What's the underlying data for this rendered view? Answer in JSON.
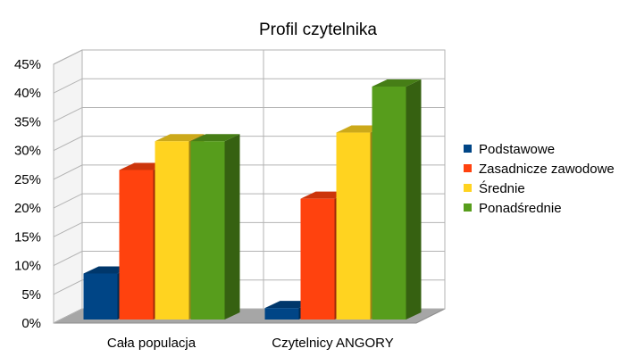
{
  "chart_data": {
    "type": "bar",
    "title": "Profil czytelnika",
    "categories": [
      "Cała populacja",
      "Czytelnicy ANGORY"
    ],
    "series": [
      {
        "name": "Podstawowe",
        "color": "#004586",
        "values": [
          8,
          2
        ]
      },
      {
        "name": "Zasadnicze zawodowe",
        "color": "#ff420e",
        "values": [
          26,
          21
        ]
      },
      {
        "name": "Średnie",
        "color": "#ffd320",
        "values": [
          31,
          32.5
        ]
      },
      {
        "name": "Ponadśrednie",
        "color": "#579d1c",
        "values": [
          31,
          40.5
        ]
      }
    ],
    "y_ticks": [
      "0%",
      "5%",
      "10%",
      "15%",
      "20%",
      "25%",
      "30%",
      "35%",
      "40%",
      "45%"
    ],
    "ylim": [
      0,
      45
    ],
    "grid": true,
    "legend_position": "right",
    "three_d": true
  }
}
